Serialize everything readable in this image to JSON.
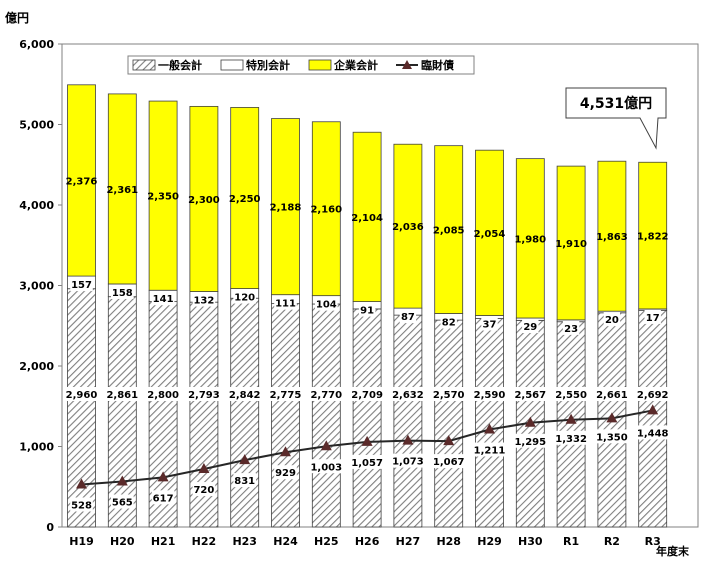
{
  "chart_data": {
    "type": "bar",
    "stacked": true,
    "y_unit_label": "億円",
    "x_unit_label": "年度末",
    "categories": [
      "H19",
      "H20",
      "H21",
      "H22",
      "H23",
      "H24",
      "H25",
      "H26",
      "H27",
      "H28",
      "H29",
      "H30",
      "R1",
      "R2",
      "R3"
    ],
    "yticks": [
      "0",
      "1,000",
      "2,000",
      "3,000",
      "4,000",
      "5,000",
      "6,000"
    ],
    "ylim": [
      0,
      6000
    ],
    "series": [
      {
        "name": "一般会計",
        "style": "hatched",
        "values": [
          2960,
          2861,
          2800,
          2793,
          2842,
          2775,
          2770,
          2709,
          2632,
          2570,
          2590,
          2567,
          2550,
          2661,
          2692
        ],
        "labels": [
          "2,960",
          "2,861",
          "2,800",
          "2,793",
          "2,842",
          "2,775",
          "2,770",
          "2,709",
          "2,632",
          "2,570",
          "2,590",
          "2,567",
          "2,550",
          "2,661",
          "2,692"
        ]
      },
      {
        "name": "特別会計",
        "style": "white",
        "values": [
          157,
          158,
          141,
          132,
          120,
          111,
          104,
          91,
          87,
          82,
          37,
          29,
          23,
          20,
          17
        ],
        "labels": [
          "157",
          "158",
          "141",
          "132",
          "120",
          "111",
          "104",
          "91",
          "87",
          "82",
          "37",
          "29",
          "23",
          "20",
          "17"
        ]
      },
      {
        "name": "企業会計",
        "style": "yellow",
        "values": [
          2376,
          2361,
          2350,
          2300,
          2250,
          2188,
          2160,
          2104,
          2036,
          2085,
          2054,
          1980,
          1910,
          1863,
          1822
        ],
        "labels": [
          "2,376",
          "2,361",
          "2,350",
          "2,300",
          "2,250",
          "2,188",
          "2,160",
          "2,104",
          "2,036",
          "2,085",
          "2,054",
          "1,980",
          "1,910",
          "1,863",
          "1,822"
        ]
      },
      {
        "name": "臨財債",
        "style": "line-triangle",
        "values": [
          528,
          565,
          617,
          720,
          831,
          929,
          1003,
          1057,
          1073,
          1067,
          1211,
          1295,
          1332,
          1350,
          1448
        ],
        "labels": [
          "528",
          "565",
          "617",
          "720",
          "831",
          "929",
          "1,003",
          "1,057",
          "1,073",
          "1,067",
          "1,211",
          "1,295",
          "1,332",
          "1,350",
          "1,448"
        ]
      }
    ],
    "callout": {
      "text": "4,531億円",
      "category": "R3"
    },
    "colors": {
      "yellow": "#ffff00",
      "hatch": "#808080",
      "line": "#262626",
      "marker": "#5a2a2a"
    }
  }
}
